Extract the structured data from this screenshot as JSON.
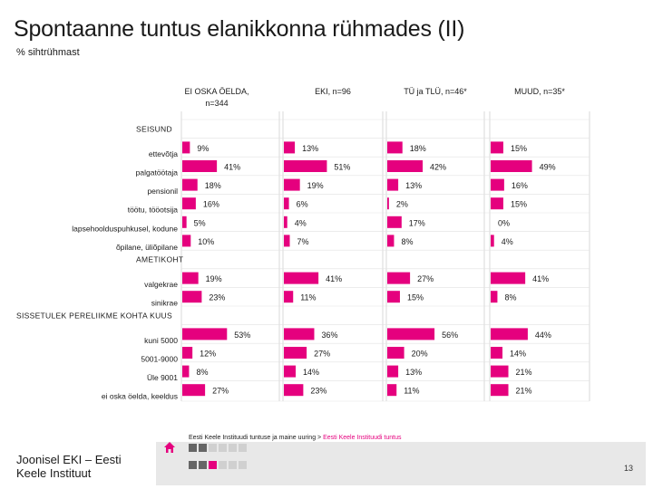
{
  "title": "Spontaanne tuntus elanikkonna rühmades (II)",
  "subtitle": "% sihtrühmast",
  "footer": {
    "source_text": "Eesti Keele Instituudi tuntuse ja maine uuring",
    "source_sep": " > ",
    "source_link": "Eesti Keele Instituudi tuntus",
    "institute_line1": "Joonisel EKI – Eesti",
    "institute_line2": "Keele Instituut",
    "page_number": "13"
  },
  "colors": {
    "bar": "#e5007e",
    "text": "#1a1a1a",
    "footer_bg": "#e8e8e8",
    "square_dark": "#666666",
    "square_light": "#d0d0d0"
  },
  "chart_data": {
    "type": "bar",
    "orientation": "horizontal",
    "title": "Spontaanne tuntus elanikkonna rühmades (II)",
    "unit": "%",
    "xlim": [
      0,
      100
    ],
    "columns": [
      {
        "name": "EI OSKA ÖELDA,",
        "name2": "n=344"
      },
      {
        "name": "EKI, n=96"
      },
      {
        "name": "TÜ ja TLÜ, n=46*"
      },
      {
        "name": "MUUD, n=35*"
      }
    ],
    "rows": [
      {
        "label": "SEISUND",
        "header": true
      },
      {
        "label": "ettevõtja",
        "values": [
          9,
          13,
          18,
          15
        ]
      },
      {
        "label": "palgatöötaja",
        "values": [
          41,
          51,
          42,
          49
        ]
      },
      {
        "label": "pensionil",
        "values": [
          18,
          19,
          13,
          16
        ]
      },
      {
        "label": "töötu, tööotsija",
        "values": [
          16,
          6,
          2,
          15
        ]
      },
      {
        "label": "lapsehoolduspuhkusel, kodune",
        "values": [
          5,
          4,
          17,
          0
        ]
      },
      {
        "label": "õpilane, üliõpilane",
        "values": [
          10,
          7,
          8,
          4
        ]
      },
      {
        "label": "AMETIKOHT",
        "header": true
      },
      {
        "label": "valgekrae",
        "values": [
          19,
          41,
          27,
          41
        ]
      },
      {
        "label": "sinikrae",
        "values": [
          23,
          11,
          15,
          8
        ]
      },
      {
        "label": "SISSETULEK PERELIIKME KOHTA KUUS",
        "header": true
      },
      {
        "label": "kuni 5000",
        "values": [
          53,
          36,
          56,
          44
        ]
      },
      {
        "label": "5001-9000",
        "values": [
          12,
          27,
          20,
          14
        ]
      },
      {
        "label": "Üle 9001",
        "values": [
          8,
          14,
          13,
          21
        ]
      },
      {
        "label": "ei oska öelda, keeldus",
        "values": [
          27,
          23,
          11,
          21
        ]
      }
    ]
  }
}
